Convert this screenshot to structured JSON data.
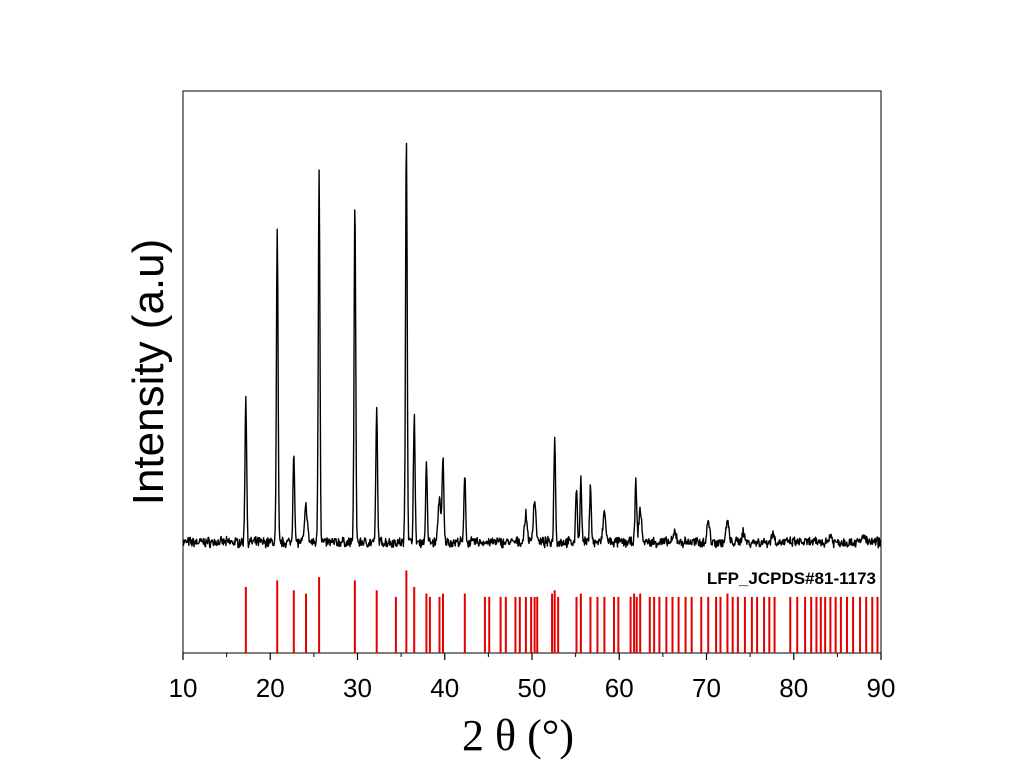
{
  "chart_data": {
    "type": "line",
    "xlabel": "2 θ (°)",
    "ylabel": "Intensity (a.u)",
    "xlim": [
      10,
      90
    ],
    "x_ticks": [
      10,
      20,
      30,
      40,
      50,
      60,
      70,
      80,
      90
    ],
    "y_ticks_shown": false,
    "grid": false,
    "legend": "none",
    "series": [
      {
        "role": "measured pattern",
        "color": "#000000",
        "baseline": 6.5,
        "peaks": [
          {
            "x": 17.2,
            "y": 100
          },
          {
            "x": 20.8,
            "y": 208
          },
          {
            "x": 22.7,
            "y": 62
          },
          {
            "x": 24.1,
            "y": 24
          },
          {
            "x": 25.6,
            "y": 250
          },
          {
            "x": 29.7,
            "y": 227
          },
          {
            "x": 32.2,
            "y": 90
          },
          {
            "x": 35.6,
            "y": 275
          },
          {
            "x": 36.5,
            "y": 85
          },
          {
            "x": 37.9,
            "y": 52
          },
          {
            "x": 39.4,
            "y": 30
          },
          {
            "x": 39.8,
            "y": 55
          },
          {
            "x": 42.3,
            "y": 46
          },
          {
            "x": 49.3,
            "y": 18
          },
          {
            "x": 50.3,
            "y": 28
          },
          {
            "x": 52.6,
            "y": 72
          },
          {
            "x": 55.1,
            "y": 38
          },
          {
            "x": 55.6,
            "y": 42
          },
          {
            "x": 56.7,
            "y": 40
          },
          {
            "x": 58.3,
            "y": 20
          },
          {
            "x": 61.9,
            "y": 40
          },
          {
            "x": 62.4,
            "y": 22
          },
          {
            "x": 66.4,
            "y": 7
          },
          {
            "x": 70.2,
            "y": 14
          },
          {
            "x": 72.4,
            "y": 14
          },
          {
            "x": 74.2,
            "y": 7
          },
          {
            "x": 77.6,
            "y": 6
          },
          {
            "x": 84.2,
            "y": 5
          },
          {
            "x": 88.0,
            "y": 5
          }
        ]
      },
      {
        "name": "LFP_JCPDS#81-1173",
        "role": "reference lines",
        "color": "#e00000",
        "type": "stick",
        "lines": [
          {
            "x": 17.2,
            "y": 20
          },
          {
            "x": 20.8,
            "y": 22
          },
          {
            "x": 22.7,
            "y": 19
          },
          {
            "x": 24.1,
            "y": 18
          },
          {
            "x": 25.6,
            "y": 23
          },
          {
            "x": 29.7,
            "y": 22
          },
          {
            "x": 32.2,
            "y": 19
          },
          {
            "x": 34.4,
            "y": 17
          },
          {
            "x": 35.6,
            "y": 25
          },
          {
            "x": 36.5,
            "y": 20
          },
          {
            "x": 37.9,
            "y": 18
          },
          {
            "x": 38.3,
            "y": 17
          },
          {
            "x": 39.4,
            "y": 17
          },
          {
            "x": 39.8,
            "y": 18
          },
          {
            "x": 42.3,
            "y": 18
          },
          {
            "x": 44.6,
            "y": 17
          },
          {
            "x": 45.1,
            "y": 17
          },
          {
            "x": 46.4,
            "y": 17
          },
          {
            "x": 47.0,
            "y": 17
          },
          {
            "x": 48.1,
            "y": 17
          },
          {
            "x": 48.6,
            "y": 17
          },
          {
            "x": 49.3,
            "y": 17
          },
          {
            "x": 49.9,
            "y": 17
          },
          {
            "x": 50.3,
            "y": 17
          },
          {
            "x": 50.6,
            "y": 17
          },
          {
            "x": 52.3,
            "y": 18
          },
          {
            "x": 52.6,
            "y": 19
          },
          {
            "x": 53.0,
            "y": 17
          },
          {
            "x": 55.1,
            "y": 17
          },
          {
            "x": 55.6,
            "y": 18
          },
          {
            "x": 56.7,
            "y": 17
          },
          {
            "x": 57.5,
            "y": 17
          },
          {
            "x": 58.3,
            "y": 17
          },
          {
            "x": 59.4,
            "y": 17
          },
          {
            "x": 59.9,
            "y": 17
          },
          {
            "x": 61.3,
            "y": 17
          },
          {
            "x": 61.7,
            "y": 18
          },
          {
            "x": 62.0,
            "y": 17
          },
          {
            "x": 62.4,
            "y": 18
          },
          {
            "x": 63.5,
            "y": 17
          },
          {
            "x": 64.0,
            "y": 17
          },
          {
            "x": 64.6,
            "y": 17
          },
          {
            "x": 65.4,
            "y": 17
          },
          {
            "x": 66.1,
            "y": 17
          },
          {
            "x": 66.8,
            "y": 17
          },
          {
            "x": 67.6,
            "y": 17
          },
          {
            "x": 68.3,
            "y": 17
          },
          {
            "x": 69.4,
            "y": 17
          },
          {
            "x": 70.2,
            "y": 17
          },
          {
            "x": 71.1,
            "y": 17
          },
          {
            "x": 71.6,
            "y": 17
          },
          {
            "x": 72.4,
            "y": 18
          },
          {
            "x": 73.0,
            "y": 17
          },
          {
            "x": 73.6,
            "y": 17
          },
          {
            "x": 74.4,
            "y": 17
          },
          {
            "x": 75.2,
            "y": 17
          },
          {
            "x": 75.8,
            "y": 17
          },
          {
            "x": 76.6,
            "y": 17
          },
          {
            "x": 77.2,
            "y": 17
          },
          {
            "x": 77.8,
            "y": 17
          },
          {
            "x": 79.6,
            "y": 17
          },
          {
            "x": 80.4,
            "y": 17
          },
          {
            "x": 81.3,
            "y": 17
          },
          {
            "x": 82.0,
            "y": 17
          },
          {
            "x": 82.6,
            "y": 17
          },
          {
            "x": 83.1,
            "y": 17
          },
          {
            "x": 83.6,
            "y": 17
          },
          {
            "x": 84.2,
            "y": 17
          },
          {
            "x": 84.8,
            "y": 17
          },
          {
            "x": 85.4,
            "y": 17
          },
          {
            "x": 86.1,
            "y": 17
          },
          {
            "x": 86.8,
            "y": 17
          },
          {
            "x": 87.6,
            "y": 17
          },
          {
            "x": 88.3,
            "y": 17
          },
          {
            "x": 89.0,
            "y": 17
          },
          {
            "x": 89.6,
            "y": 17
          }
        ]
      }
    ]
  }
}
